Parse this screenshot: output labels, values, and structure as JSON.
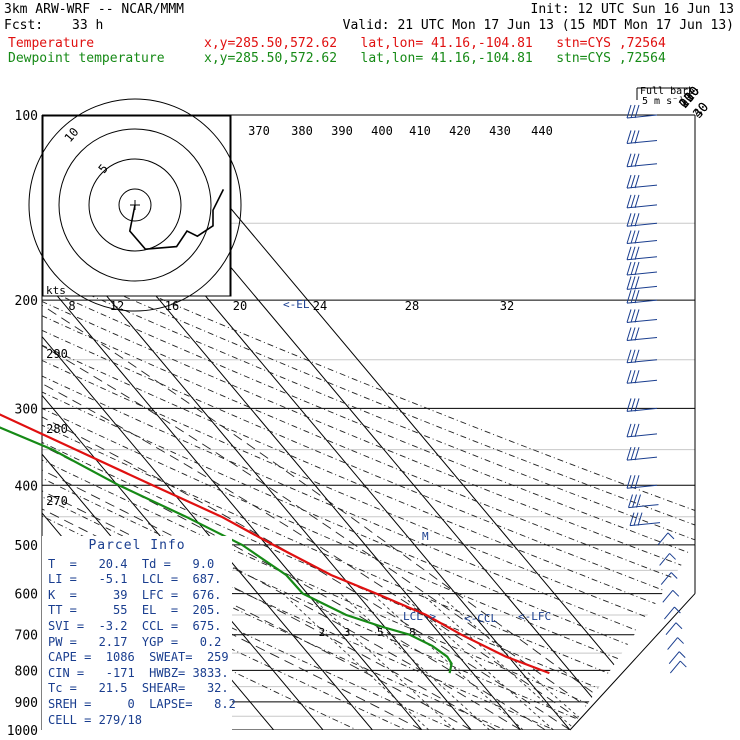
{
  "header": {
    "line1_left": "3km ARW-WRF -- NCAR/MMM",
    "line1_right": "Init: 12 UTC Sun 16 Jun 13",
    "fcst_label": "Fcst:",
    "fcst_value": "33 h",
    "valid": "Valid: 21 UTC Mon 17 Jun 13 (15 MDT Mon 17 Jun 13)",
    "temp_label": "Temperature",
    "temp_info": "x,y=285.50,572.62   lat,lon= 41.16,-104.81   stn=CYS ,72564",
    "dew_label": "Dewpoint temperature",
    "dew_info": "x,y=285.50,572.62   lat,lon= 41.16,-104.81   stn=CYS ,72564",
    "temp_color": "#e01010",
    "dew_color": "#168a16"
  },
  "barb_legend": {
    "line1": "Full barb:",
    "line2": "5 m s⁻¹"
  },
  "chart_data": {
    "type": "skew-t",
    "pressure_axis": {
      "label_levels": [
        100,
        200,
        300,
        400,
        500,
        600,
        700,
        800,
        900,
        1000
      ],
      "range": [
        100,
        1000
      ]
    },
    "isotherm_labels": [
      "-80",
      "-70",
      "-60",
      "-50",
      "-40",
      "-30",
      "-20",
      "-10",
      "0",
      "10",
      "20",
      "30",
      "40"
    ],
    "isotherm_values": [
      -80,
      -70,
      -60,
      -50,
      -40,
      -30,
      -20,
      -10,
      0,
      10,
      20,
      30,
      40
    ],
    "theta_labels_top": [
      "370",
      "380",
      "390",
      "400",
      "410",
      "420",
      "430",
      "440"
    ],
    "theta_labels_left": [
      "290",
      "280",
      "270"
    ],
    "mixing_ratio_labels": [
      "2",
      "3",
      "5",
      "8"
    ],
    "hodo_ticks": [
      "8",
      "12",
      "16",
      "20",
      "24",
      "28",
      "32"
    ],
    "hodo_units": "kts",
    "hodo_rings": [
      "5",
      "10"
    ],
    "markers": {
      "el": "<-EL",
      "lcl": "LCL->",
      "lfc": "<-LFC",
      "ccl": "<-CCL",
      "m": "M"
    },
    "temperature": [
      [
        808,
        25.5
      ],
      [
        760,
        19.5
      ],
      [
        700,
        14.2
      ],
      [
        650,
        10.4
      ],
      [
        600,
        4.0
      ],
      [
        560,
        -2.0
      ],
      [
        500,
        -8.6
      ],
      [
        450,
        -14.3
      ],
      [
        400,
        -22.9
      ],
      [
        350,
        -32.4
      ],
      [
        300,
        -43.4
      ],
      [
        250,
        -55.3
      ],
      [
        215,
        -64.3
      ],
      [
        200,
        -67.7
      ],
      [
        180,
        -63.8
      ],
      [
        150,
        -58.5
      ],
      [
        120,
        -56.1
      ],
      [
        110,
        -54.6
      ],
      [
        100,
        -51.6
      ]
    ],
    "dewpoint": [
      [
        808,
        5.3
      ],
      [
        780,
        7.3
      ],
      [
        760,
        7.6
      ],
      [
        730,
        6.4
      ],
      [
        700,
        3.7
      ],
      [
        680,
        -0.4
      ],
      [
        650,
        -5.8
      ],
      [
        600,
        -10.9
      ],
      [
        560,
        -11.1
      ],
      [
        500,
        -14.9
      ],
      [
        450,
        -21.5
      ],
      [
        400,
        -29.7
      ],
      [
        350,
        -37.1
      ],
      [
        300,
        -49.9
      ],
      [
        250,
        -61.2
      ],
      [
        200,
        -69.1
      ],
      [
        180,
        -82.8
      ],
      [
        160,
        -89.0
      ],
      [
        130,
        -93.4
      ],
      [
        100,
        -94.4
      ]
    ],
    "hodograph_points": [
      [
        0,
        0
      ],
      [
        -2,
        -10
      ],
      [
        4,
        -17
      ],
      [
        16,
        -16
      ],
      [
        20,
        -10
      ],
      [
        24,
        -12
      ],
      [
        30,
        -8
      ],
      [
        30,
        -2
      ],
      [
        34,
        6
      ]
    ],
    "barb_levels": [
      100,
      110,
      120,
      130,
      140,
      150,
      160,
      170,
      180,
      190,
      200,
      215,
      230,
      250,
      270,
      300,
      330,
      360,
      400,
      430,
      460,
      500,
      540,
      580,
      620,
      660,
      700,
      740,
      780,
      808
    ]
  },
  "parcel_info": {
    "title": "Parcel Info",
    "rows": [
      "T  =   20.4  Td =   9.0",
      "LI =   -5.1  LCL =  687.",
      "K  =     39  LFC =  676.",
      "TT =     55  EL  =  205.",
      "SVI =  -3.2  CCL =  675.",
      "PW =   2.17  YGP =   0.2",
      "CAPE =  1086  SWEAT=  259",
      "CIN =   -171  HWBZ= 3833.",
      "Tc =   21.5  SHEAR=   32.",
      "SREH =     0  LAPSE=   8.2",
      "CELL = 279/18"
    ]
  }
}
